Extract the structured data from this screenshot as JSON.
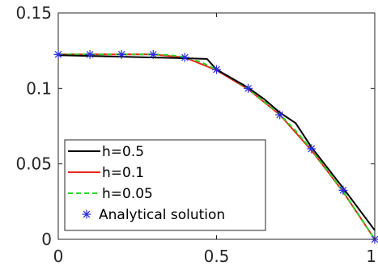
{
  "chart_data": {
    "type": "line",
    "title": "",
    "xlabel": "",
    "ylabel": "",
    "xlim": [
      0,
      1
    ],
    "ylim": [
      0,
      0.15
    ],
    "x_ticks": [
      0,
      0.5,
      1
    ],
    "y_ticks": [
      0,
      0.05,
      0.1,
      0.15
    ],
    "x_tick_labels": [
      "0",
      "0.5",
      "1"
    ],
    "y_tick_labels": [
      "0",
      "0.05",
      "0.1",
      "0.15"
    ],
    "grid": false,
    "legend_position": "bottom-left",
    "series": [
      {
        "name": "h=0.5",
        "style": "solid",
        "color": "#000000",
        "x": [
          0,
          0.1,
          0.2,
          0.3,
          0.4,
          0.47,
          0.5,
          0.6,
          0.65,
          0.7,
          0.75,
          0.8,
          0.9,
          1.0
        ],
        "y": [
          0.122,
          0.1215,
          0.121,
          0.1205,
          0.12,
          0.1195,
          0.1125,
          0.1005,
          0.093,
          0.084,
          0.077,
          0.061,
          0.034,
          0.006
        ]
      },
      {
        "name": "h=0.1",
        "style": "solid",
        "color": "#e8271b",
        "x": [
          0,
          0.1,
          0.2,
          0.3,
          0.4,
          0.5,
          0.6,
          0.7,
          0.8,
          0.9,
          1.0
        ],
        "y": [
          0.1225,
          0.1225,
          0.1225,
          0.1225,
          0.1205,
          0.112,
          0.0995,
          0.0825,
          0.059,
          0.0315,
          0.0
        ]
      },
      {
        "name": "h=0.05",
        "style": "dashed",
        "color": "#22dd22",
        "x": [
          0,
          0.05,
          0.1,
          0.15,
          0.2,
          0.25,
          0.3,
          0.35,
          0.4,
          0.45,
          0.5,
          0.55,
          0.6,
          0.65,
          0.7,
          0.75,
          0.8,
          0.85,
          0.9,
          0.95,
          1.0
        ],
        "y": [
          0.1225,
          0.1225,
          0.1225,
          0.1225,
          0.1225,
          0.1225,
          0.1225,
          0.1222,
          0.1208,
          0.1175,
          0.1125,
          0.1065,
          0.0998,
          0.0915,
          0.0828,
          0.072,
          0.0596,
          0.0458,
          0.0318,
          0.0162,
          0.0
        ]
      },
      {
        "name": "Analytical solution",
        "style": "markers",
        "marker": "asterisk",
        "color": "#2a2ae8",
        "x": [
          0,
          0.1,
          0.2,
          0.3,
          0.4,
          0.5,
          0.6,
          0.7,
          0.8,
          0.9,
          1.0
        ],
        "y": [
          0.1225,
          0.1225,
          0.1225,
          0.1225,
          0.1205,
          0.1125,
          0.1,
          0.0825,
          0.06,
          0.0325,
          0.0
        ]
      }
    ]
  }
}
